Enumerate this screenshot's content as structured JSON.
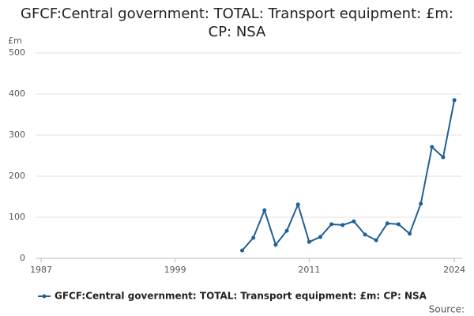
{
  "chart_data": {
    "type": "line",
    "title": "GFCF:Central government: TOTAL: Transport equipment: £m: CP: NSA",
    "y_unit": "£m",
    "x": [
      2005,
      2006,
      2007,
      2008,
      2009,
      2010,
      2011,
      2012,
      2013,
      2014,
      2015,
      2016,
      2017,
      2018,
      2019,
      2020,
      2021,
      2022,
      2023,
      2024
    ],
    "series": [
      {
        "name": "GFCF:Central government: TOTAL: Transport equipment: £m: CP: NSA",
        "color": "#206095",
        "values": [
          19,
          50,
          117,
          33,
          67,
          131,
          40,
          52,
          83,
          81,
          90,
          58,
          44,
          85,
          83,
          60,
          133,
          271,
          246,
          385
        ]
      }
    ],
    "xlim": [
      1986.5,
      2024.7
    ],
    "xticks": [
      1987,
      1999,
      2011,
      2024
    ],
    "ylim": [
      0,
      500
    ],
    "yticks": [
      0,
      100,
      200,
      300,
      400,
      500
    ],
    "grid": true,
    "legend_position": "bottom",
    "source": "Source:"
  }
}
